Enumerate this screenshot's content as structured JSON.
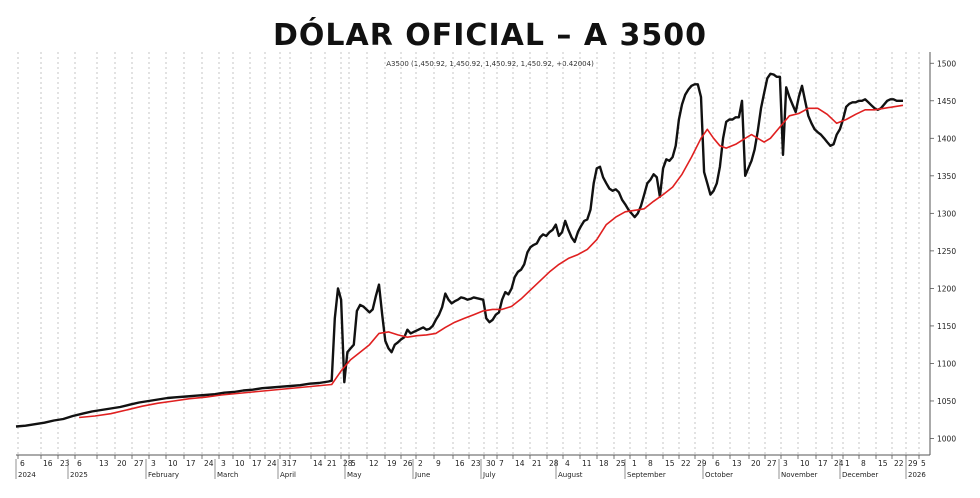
{
  "chart_data": {
    "type": "line",
    "title": "DÓLAR OFICIAL – A 3500",
    "legend_text": "A3500 (1,450.92, 1,450.92, 1,450.92, 1,450.92, +0.42004)",
    "y_ticks": [
      1000,
      1050,
      1100,
      1150,
      1200,
      1250,
      1300,
      1350,
      1400,
      1450,
      1500
    ],
    "ylim": [
      978,
      1515
    ],
    "day_ticks": [
      "6",
      "16",
      "23",
      "6",
      "13",
      "20",
      "27",
      "3",
      "10",
      "17",
      "24",
      "3",
      "10",
      "17",
      "24",
      "31",
      "7",
      "14",
      "21",
      "28",
      "5",
      "12",
      "19",
      "26",
      "2",
      "9",
      "16",
      "23",
      "30",
      "7",
      "14",
      "21",
      "28",
      "4",
      "11",
      "18",
      "25",
      "1",
      "8",
      "15",
      "22",
      "29",
      "6",
      "13",
      "20",
      "27",
      "3",
      "10",
      "17",
      "24",
      "1",
      "8",
      "15",
      "22",
      "29",
      "5"
    ],
    "month_labels": [
      "2024",
      "2025",
      "February",
      "March",
      "April",
      "May",
      "June",
      "July",
      "August",
      "September",
      "October",
      "November",
      "December",
      "2026"
    ],
    "grid": true,
    "colors": {
      "price": "#111111",
      "average": "#e02020",
      "grid": "#b8b8b8"
    },
    "series": [
      {
        "values": [
          [
            0,
            1016
          ],
          [
            3,
            1017
          ],
          [
            6,
            1019
          ],
          [
            9,
            1021
          ],
          [
            12,
            1024
          ],
          [
            15,
            1026
          ],
          [
            18,
            1030
          ],
          [
            21,
            1033
          ],
          [
            24,
            1036
          ],
          [
            27,
            1038
          ],
          [
            30,
            1040
          ],
          [
            33,
            1042
          ],
          [
            36,
            1045
          ],
          [
            39,
            1048
          ],
          [
            42,
            1050
          ],
          [
            45,
            1052
          ],
          [
            48,
            1054
          ],
          [
            51,
            1055
          ],
          [
            54,
            1056
          ],
          [
            57,
            1057
          ],
          [
            60,
            1058
          ],
          [
            63,
            1059
          ],
          [
            66,
            1061
          ],
          [
            69,
            1062
          ],
          [
            72,
            1064
          ],
          [
            75,
            1065
          ],
          [
            78,
            1067
          ],
          [
            81,
            1068
          ],
          [
            84,
            1069
          ],
          [
            87,
            1070
          ],
          [
            90,
            1071
          ],
          [
            93,
            1073
          ],
          [
            96,
            1074
          ],
          [
            99,
            1076
          ],
          [
            100,
            1077
          ],
          [
            101,
            1160
          ],
          [
            102,
            1200
          ],
          [
            103,
            1185
          ],
          [
            104,
            1075
          ],
          [
            105,
            1115
          ],
          [
            106,
            1120
          ],
          [
            107,
            1125
          ],
          [
            108,
            1170
          ],
          [
            109,
            1178
          ],
          [
            110,
            1176
          ],
          [
            111,
            1172
          ],
          [
            112,
            1168
          ],
          [
            113,
            1172
          ],
          [
            114,
            1190
          ],
          [
            115,
            1205
          ],
          [
            116,
            1165
          ],
          [
            117,
            1130
          ],
          [
            118,
            1120
          ],
          [
            119,
            1115
          ],
          [
            120,
            1125
          ],
          [
            121,
            1128
          ],
          [
            122,
            1132
          ],
          [
            123,
            1135
          ],
          [
            124,
            1145
          ],
          [
            125,
            1140
          ],
          [
            126,
            1142
          ],
          [
            127,
            1144
          ],
          [
            128,
            1146
          ],
          [
            129,
            1148
          ],
          [
            130,
            1145
          ],
          [
            131,
            1146
          ],
          [
            132,
            1150
          ],
          [
            133,
            1158
          ],
          [
            134,
            1165
          ],
          [
            135,
            1175
          ],
          [
            136,
            1193
          ],
          [
            137,
            1185
          ],
          [
            138,
            1180
          ],
          [
            139,
            1183
          ],
          [
            140,
            1185
          ],
          [
            141,
            1188
          ],
          [
            142,
            1187
          ],
          [
            143,
            1185
          ],
          [
            144,
            1186
          ],
          [
            145,
            1188
          ],
          [
            146,
            1187
          ],
          [
            147,
            1186
          ],
          [
            148,
            1185
          ],
          [
            149,
            1160
          ],
          [
            150,
            1155
          ],
          [
            151,
            1158
          ],
          [
            152,
            1165
          ],
          [
            153,
            1168
          ],
          [
            154,
            1185
          ],
          [
            155,
            1195
          ],
          [
            156,
            1192
          ],
          [
            157,
            1200
          ],
          [
            158,
            1215
          ],
          [
            159,
            1222
          ],
          [
            160,
            1225
          ],
          [
            161,
            1232
          ],
          [
            162,
            1248
          ],
          [
            163,
            1255
          ],
          [
            164,
            1258
          ],
          [
            165,
            1260
          ],
          [
            166,
            1268
          ],
          [
            167,
            1272
          ],
          [
            168,
            1270
          ],
          [
            169,
            1275
          ],
          [
            170,
            1278
          ],
          [
            171,
            1285
          ],
          [
            172,
            1270
          ],
          [
            173,
            1275
          ],
          [
            174,
            1290
          ],
          [
            175,
            1278
          ],
          [
            176,
            1268
          ],
          [
            177,
            1262
          ],
          [
            178,
            1275
          ],
          [
            179,
            1283
          ],
          [
            180,
            1290
          ],
          [
            181,
            1292
          ],
          [
            182,
            1305
          ],
          [
            183,
            1340
          ],
          [
            184,
            1360
          ],
          [
            185,
            1362
          ],
          [
            186,
            1348
          ],
          [
            187,
            1340
          ],
          [
            188,
            1333
          ],
          [
            189,
            1330
          ],
          [
            190,
            1332
          ],
          [
            191,
            1328
          ],
          [
            192,
            1318
          ],
          [
            193,
            1312
          ],
          [
            194,
            1305
          ],
          [
            195,
            1300
          ],
          [
            196,
            1295
          ],
          [
            197,
            1300
          ],
          [
            198,
            1310
          ],
          [
            199,
            1325
          ],
          [
            200,
            1340
          ],
          [
            201,
            1345
          ],
          [
            202,
            1352
          ],
          [
            203,
            1348
          ],
          [
            204,
            1322
          ],
          [
            205,
            1360
          ],
          [
            206,
            1372
          ],
          [
            207,
            1370
          ],
          [
            208,
            1375
          ],
          [
            209,
            1390
          ],
          [
            210,
            1425
          ],
          [
            211,
            1445
          ],
          [
            212,
            1458
          ],
          [
            213,
            1465
          ],
          [
            214,
            1470
          ],
          [
            215,
            1472
          ],
          [
            216,
            1472
          ],
          [
            217,
            1455
          ],
          [
            218,
            1355
          ],
          [
            219,
            1340
          ],
          [
            220,
            1325
          ],
          [
            221,
            1330
          ],
          [
            222,
            1340
          ],
          [
            223,
            1362
          ],
          [
            224,
            1400
          ],
          [
            225,
            1422
          ],
          [
            226,
            1425
          ],
          [
            227,
            1425
          ],
          [
            228,
            1428
          ],
          [
            229,
            1428
          ],
          [
            230,
            1450
          ],
          [
            231,
            1350
          ],
          [
            232,
            1360
          ],
          [
            233,
            1370
          ],
          [
            234,
            1385
          ],
          [
            235,
            1410
          ],
          [
            236,
            1440
          ],
          [
            237,
            1460
          ],
          [
            238,
            1480
          ],
          [
            239,
            1486
          ],
          [
            240,
            1485
          ],
          [
            241,
            1482
          ],
          [
            242,
            1482
          ],
          [
            243,
            1378
          ],
          [
            244,
            1468
          ],
          [
            245,
            1455
          ],
          [
            246,
            1445
          ],
          [
            247,
            1435
          ],
          [
            248,
            1455
          ],
          [
            249,
            1470
          ],
          [
            250,
            1450
          ],
          [
            251,
            1430
          ],
          [
            252,
            1420
          ],
          [
            253,
            1412
          ],
          [
            254,
            1408
          ],
          [
            255,
            1405
          ],
          [
            256,
            1400
          ],
          [
            257,
            1395
          ],
          [
            258,
            1390
          ],
          [
            259,
            1392
          ],
          [
            260,
            1405
          ],
          [
            261,
            1412
          ],
          [
            262,
            1425
          ],
          [
            263,
            1442
          ],
          [
            264,
            1446
          ],
          [
            265,
            1448
          ],
          [
            266,
            1448
          ],
          [
            267,
            1450
          ],
          [
            268,
            1450
          ],
          [
            269,
            1452
          ],
          [
            270,
            1448
          ],
          [
            271,
            1444
          ],
          [
            272,
            1440
          ],
          [
            273,
            1438
          ],
          [
            274,
            1440
          ],
          [
            275,
            1445
          ],
          [
            276,
            1450
          ],
          [
            277,
            1452
          ],
          [
            278,
            1452
          ],
          [
            279,
            1450
          ],
          [
            280,
            1450
          ],
          [
            281,
            1450
          ]
        ]
      },
      {
        "values": [
          [
            20,
            1028
          ],
          [
            25,
            1030
          ],
          [
            30,
            1033
          ],
          [
            35,
            1038
          ],
          [
            40,
            1043
          ],
          [
            45,
            1047
          ],
          [
            50,
            1050
          ],
          [
            55,
            1053
          ],
          [
            60,
            1055
          ],
          [
            65,
            1058
          ],
          [
            70,
            1060
          ],
          [
            75,
            1062
          ],
          [
            80,
            1064
          ],
          [
            85,
            1066
          ],
          [
            90,
            1068
          ],
          [
            95,
            1070
          ],
          [
            100,
            1072
          ],
          [
            103,
            1090
          ],
          [
            106,
            1105
          ],
          [
            109,
            1115
          ],
          [
            112,
            1125
          ],
          [
            115,
            1140
          ],
          [
            118,
            1142
          ],
          [
            121,
            1138
          ],
          [
            124,
            1135
          ],
          [
            127,
            1137
          ],
          [
            130,
            1138
          ],
          [
            133,
            1140
          ],
          [
            136,
            1148
          ],
          [
            139,
            1155
          ],
          [
            142,
            1160
          ],
          [
            145,
            1165
          ],
          [
            148,
            1170
          ],
          [
            151,
            1172
          ],
          [
            154,
            1172
          ],
          [
            157,
            1176
          ],
          [
            160,
            1186
          ],
          [
            163,
            1198
          ],
          [
            166,
            1210
          ],
          [
            169,
            1222
          ],
          [
            172,
            1232
          ],
          [
            175,
            1240
          ],
          [
            178,
            1245
          ],
          [
            181,
            1252
          ],
          [
            184,
            1265
          ],
          [
            187,
            1285
          ],
          [
            190,
            1295
          ],
          [
            193,
            1302
          ],
          [
            196,
            1304
          ],
          [
            199,
            1306
          ],
          [
            202,
            1316
          ],
          [
            205,
            1325
          ],
          [
            208,
            1335
          ],
          [
            211,
            1352
          ],
          [
            214,
            1375
          ],
          [
            217,
            1400
          ],
          [
            219,
            1412
          ],
          [
            221,
            1400
          ],
          [
            223,
            1390
          ],
          [
            225,
            1387
          ],
          [
            228,
            1392
          ],
          [
            231,
            1400
          ],
          [
            233,
            1405
          ],
          [
            235,
            1400
          ],
          [
            237,
            1395
          ],
          [
            239,
            1400
          ],
          [
            242,
            1415
          ],
          [
            245,
            1430
          ],
          [
            248,
            1433
          ],
          [
            251,
            1440
          ],
          [
            254,
            1440
          ],
          [
            257,
            1432
          ],
          [
            260,
            1420
          ],
          [
            263,
            1425
          ],
          [
            266,
            1432
          ],
          [
            269,
            1438
          ],
          [
            272,
            1438
          ],
          [
            275,
            1440
          ],
          [
            278,
            1442
          ],
          [
            281,
            1444
          ]
        ]
      }
    ]
  }
}
